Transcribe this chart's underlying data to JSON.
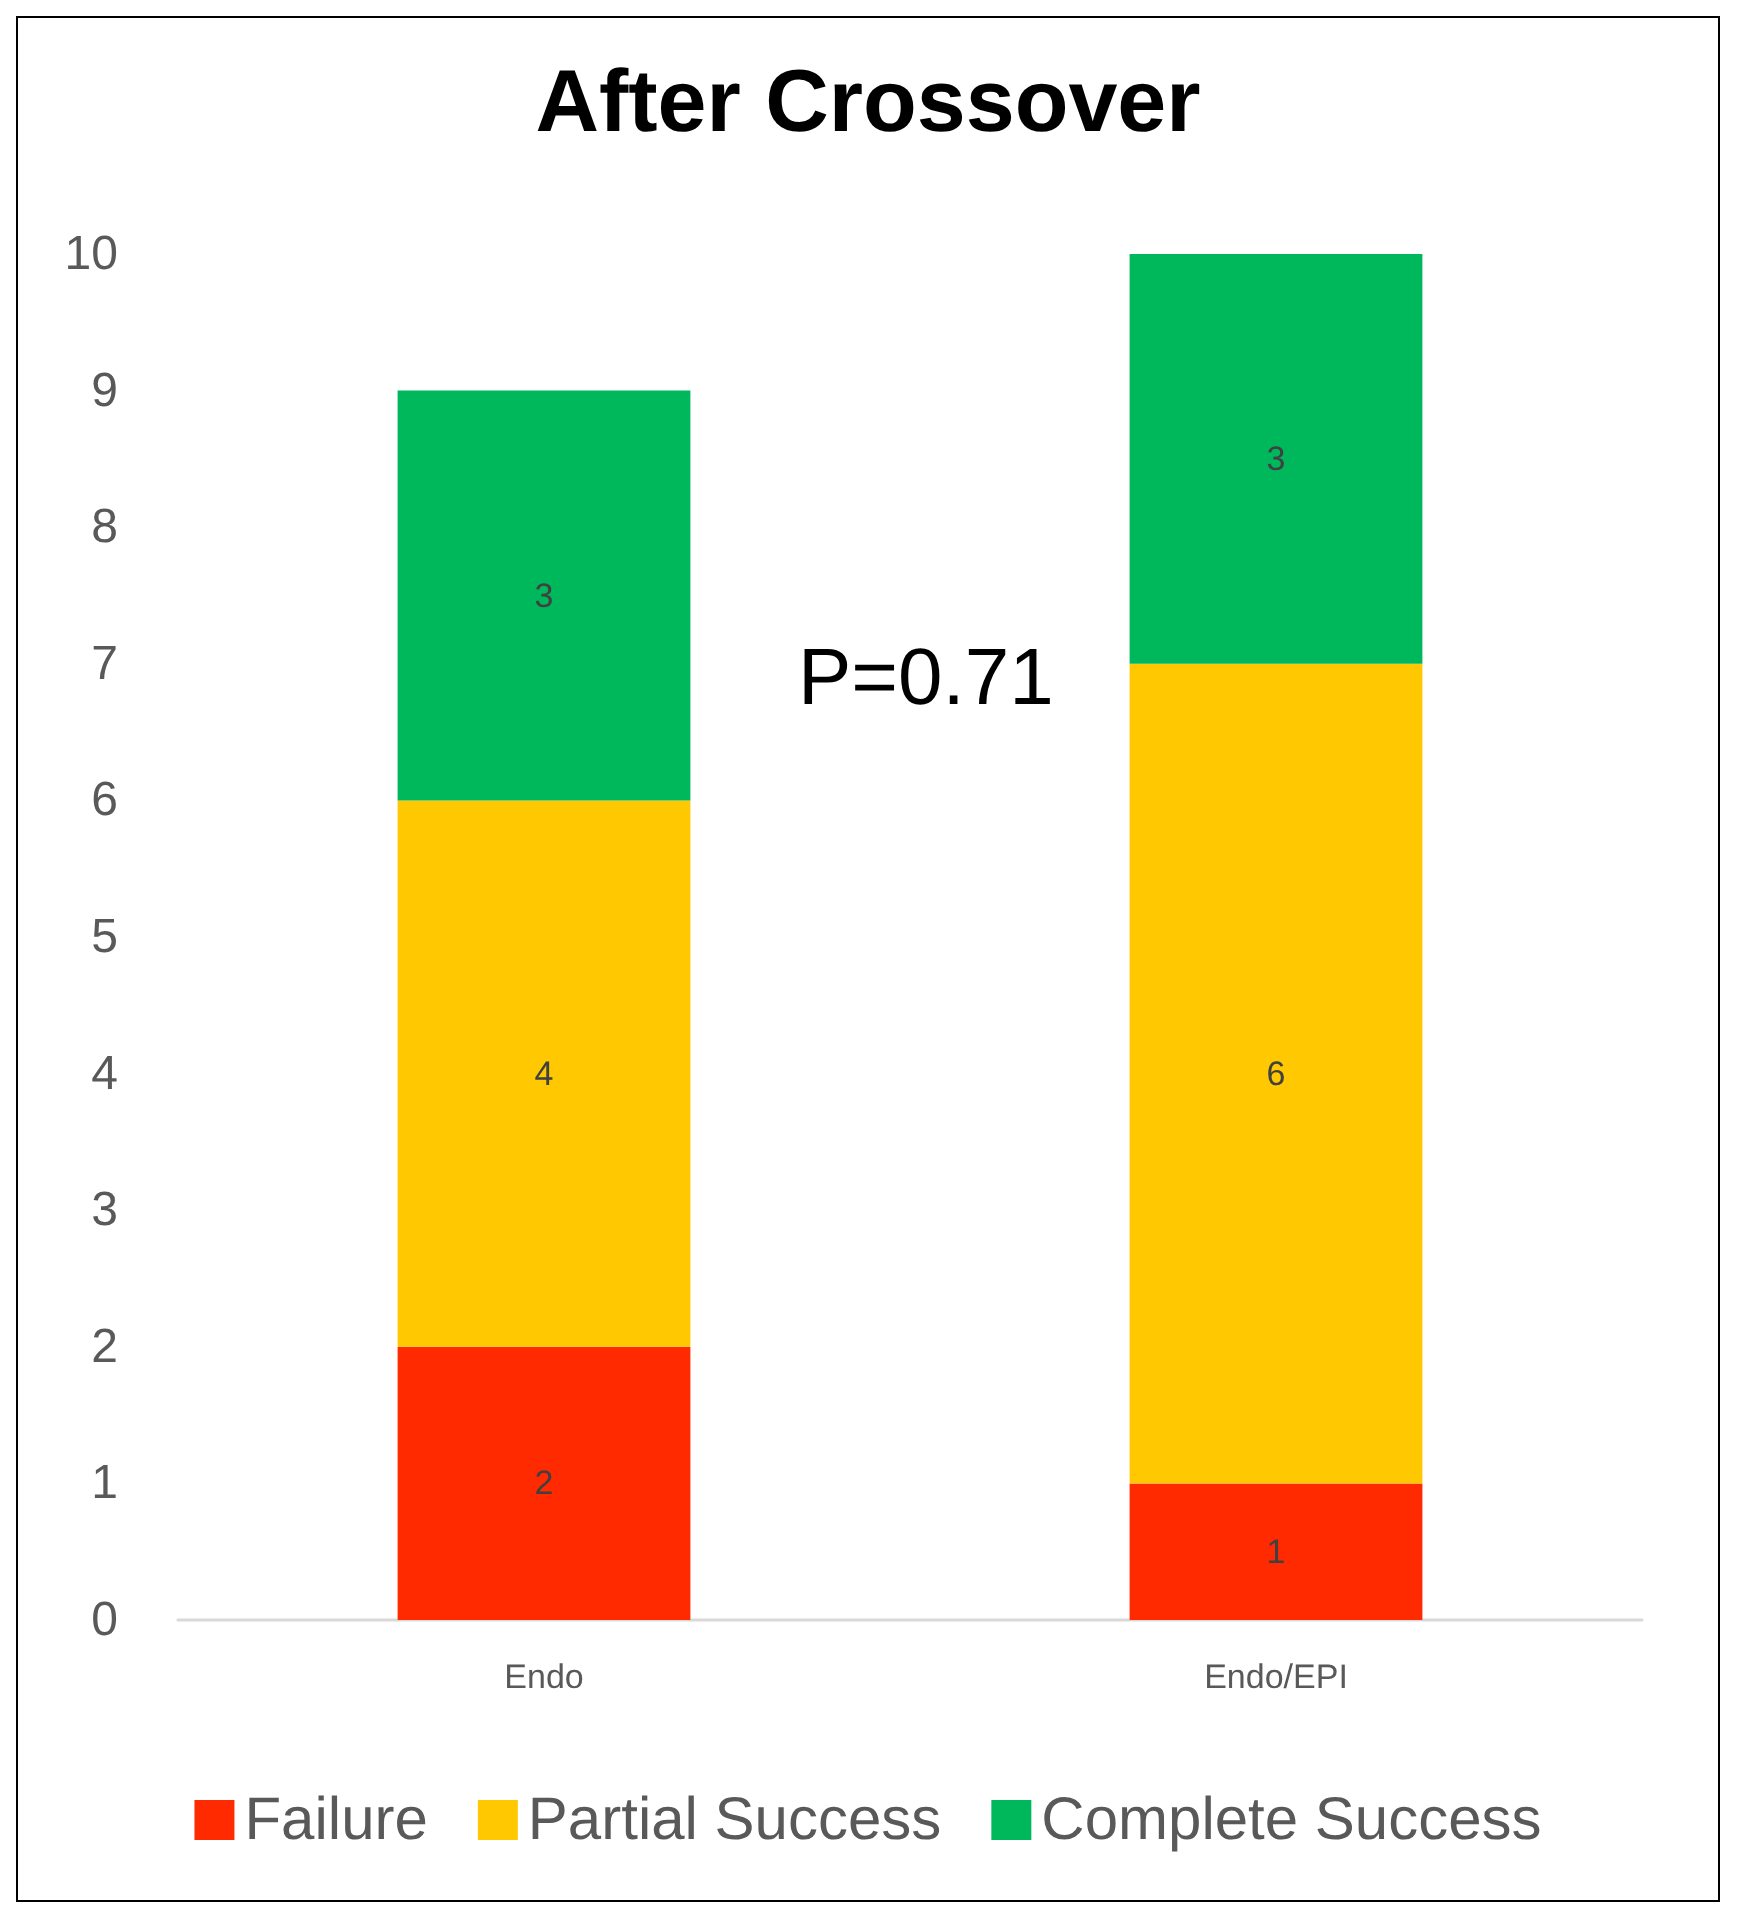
{
  "chart_data": {
    "type": "bar",
    "title": "After Crossover",
    "categories": [
      "Endo",
      "Endo/EPI"
    ],
    "stacked": true,
    "series": [
      {
        "name": "Failure",
        "color": "#ff2a00",
        "values": [
          2,
          1
        ]
      },
      {
        "name": "Partial Success",
        "color": "#ffc800",
        "values": [
          4,
          6
        ]
      },
      {
        "name": "Complete Success",
        "color": "#00b85c",
        "values": [
          3,
          3
        ]
      }
    ],
    "ylim": [
      0,
      10
    ],
    "yticks": [
      0,
      1,
      2,
      3,
      4,
      5,
      6,
      7,
      8,
      9,
      10
    ],
    "grid": false,
    "legend": "bottom",
    "data_labels": true,
    "annotations": [
      "P=0.71"
    ]
  }
}
